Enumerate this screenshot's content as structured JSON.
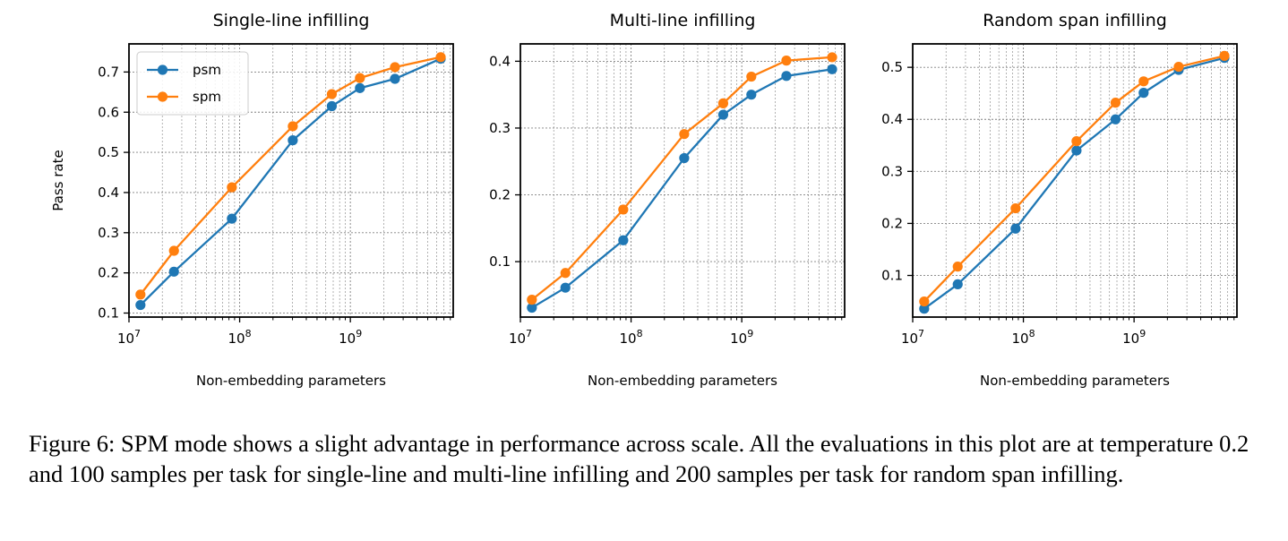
{
  "figure": {
    "caption": "Figure 6: SPM mode shows a slight advantage in performance across scale. All the evaluations in this plot are at temperature 0.2 and 100 samples per task for single-line and multi-line infilling and 200 samples per task for random span infilling."
  },
  "colors": {
    "psm": "#1f77b4",
    "spm": "#ff7f0e",
    "grid": "#808080",
    "axis": "#000000"
  },
  "chart_data": [
    {
      "type": "line",
      "title": "Single-line infilling",
      "xlabel": "Non-embedding parameters",
      "ylabel": "Pass rate",
      "x_scale": "log",
      "xlim": [
        10000000,
        8500000000
      ],
      "ylim": [
        0.09,
        0.77
      ],
      "x_ticks": [
        "10^7",
        "10^8",
        "10^9"
      ],
      "y_ticks": [
        0.1,
        0.2,
        0.3,
        0.4,
        0.5,
        0.6,
        0.7
      ],
      "y_tick_labels": [
        "0.1",
        "0.2",
        "0.3",
        "0.4",
        "0.5",
        "0.6",
        "0.7"
      ],
      "grid": true,
      "legend": {
        "show": true,
        "position": "upper-left"
      },
      "x": [
        12700000,
        25500000,
        85000000,
        302000000,
        680000000,
        1220000000,
        2530000000,
        6550000000
      ],
      "series": [
        {
          "name": "psm",
          "values": [
            0.12,
            0.203,
            0.335,
            0.53,
            0.615,
            0.66,
            0.683,
            0.733
          ]
        },
        {
          "name": "spm",
          "values": [
            0.146,
            0.255,
            0.413,
            0.565,
            0.645,
            0.685,
            0.712,
            0.737
          ]
        }
      ]
    },
    {
      "type": "line",
      "title": "Multi-line infilling",
      "xlabel": "Non-embedding parameters",
      "ylabel": "",
      "x_scale": "log",
      "xlim": [
        10000000,
        8500000000
      ],
      "ylim": [
        0.017,
        0.426
      ],
      "x_ticks": [
        "10^7",
        "10^8",
        "10^9"
      ],
      "y_ticks": [
        0.1,
        0.2,
        0.3,
        0.4
      ],
      "y_tick_labels": [
        "0.1",
        "0.2",
        "0.3",
        "0.4"
      ],
      "grid": true,
      "legend": {
        "show": false
      },
      "x": [
        12700000,
        25500000,
        85000000,
        302000000,
        680000000,
        1220000000,
        2530000000,
        6550000000
      ],
      "series": [
        {
          "name": "psm",
          "values": [
            0.031,
            0.061,
            0.132,
            0.255,
            0.32,
            0.35,
            0.378,
            0.388
          ]
        },
        {
          "name": "spm",
          "values": [
            0.043,
            0.083,
            0.178,
            0.291,
            0.337,
            0.377,
            0.401,
            0.406
          ]
        }
      ]
    },
    {
      "type": "line",
      "title": "Random span infilling",
      "xlabel": "Non-embedding parameters",
      "ylabel": "",
      "x_scale": "log",
      "xlim": [
        10000000,
        8500000000
      ],
      "ylim": [
        0.02,
        0.545
      ],
      "x_ticks": [
        "10^7",
        "10^8",
        "10^9"
      ],
      "y_ticks": [
        0.1,
        0.2,
        0.3,
        0.4,
        0.5
      ],
      "y_tick_labels": [
        "0.1",
        "0.2",
        "0.3",
        "0.4",
        "0.5"
      ],
      "grid": true,
      "legend": {
        "show": false
      },
      "x": [
        12700000,
        25500000,
        85000000,
        302000000,
        680000000,
        1220000000,
        2530000000,
        6550000000
      ],
      "series": [
        {
          "name": "psm",
          "values": [
            0.036,
            0.083,
            0.19,
            0.34,
            0.4,
            0.451,
            0.495,
            0.518
          ]
        },
        {
          "name": "spm",
          "values": [
            0.05,
            0.117,
            0.229,
            0.358,
            0.432,
            0.473,
            0.501,
            0.522
          ]
        }
      ]
    }
  ]
}
